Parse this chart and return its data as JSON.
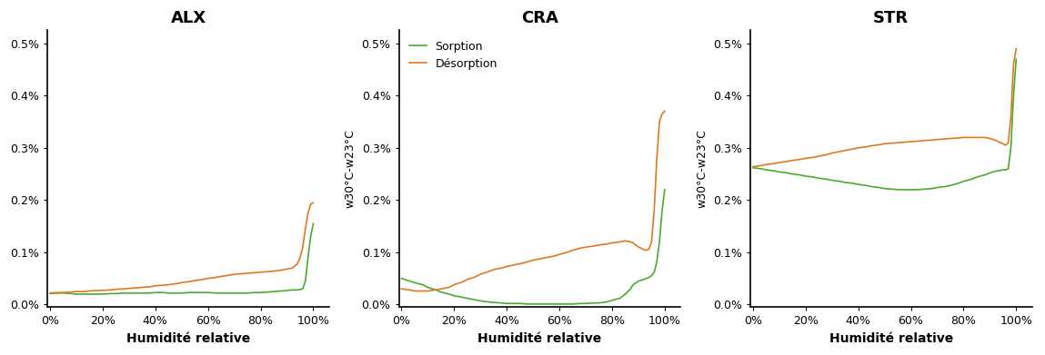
{
  "titles": [
    "ALX",
    "CRA",
    "STR"
  ],
  "ylabel": "w30°C-w23°C",
  "xlabel": "Humidité relative",
  "ylim": [
    0.0,
    0.005
  ],
  "yticks": [
    0.0,
    0.001,
    0.002,
    0.003,
    0.004,
    0.005
  ],
  "ytick_labels": [
    "0.0%",
    "0.1%",
    "0.2%",
    "0.3%",
    "0.4%",
    "0.5%"
  ],
  "xticks": [
    0,
    0.2,
    0.4,
    0.6,
    0.8,
    1.0
  ],
  "xtick_labels": [
    "0%",
    "20%",
    "40%",
    "60%",
    "80%",
    "100%"
  ],
  "color_sorption": "#4aaa30",
  "color_desorption": "#e07820",
  "legend_labels": [
    "Sorption",
    "Désorption"
  ],
  "legend_panel": 1,
  "show_ylabel": [
    false,
    true,
    true
  ],
  "ALX": {
    "sorption_x": [
      0.0,
      0.03,
      0.05,
      0.08,
      0.1,
      0.13,
      0.15,
      0.18,
      0.2,
      0.23,
      0.25,
      0.28,
      0.3,
      0.33,
      0.35,
      0.38,
      0.4,
      0.43,
      0.45,
      0.48,
      0.5,
      0.53,
      0.55,
      0.58,
      0.6,
      0.63,
      0.65,
      0.68,
      0.7,
      0.73,
      0.75,
      0.78,
      0.8,
      0.83,
      0.85,
      0.88,
      0.9,
      0.92,
      0.94,
      0.95,
      0.96,
      0.97,
      0.98,
      0.99,
      1.0
    ],
    "sorption_y": [
      0.00021,
      0.00022,
      0.00022,
      0.00021,
      0.0002,
      0.0002,
      0.0002,
      0.0002,
      0.0002,
      0.00021,
      0.00021,
      0.00022,
      0.00022,
      0.00022,
      0.00022,
      0.00022,
      0.00023,
      0.00023,
      0.00022,
      0.00022,
      0.00022,
      0.00023,
      0.00023,
      0.00023,
      0.00023,
      0.00022,
      0.00022,
      0.00022,
      0.00022,
      0.00022,
      0.00022,
      0.00023,
      0.00023,
      0.00024,
      0.00025,
      0.00026,
      0.00027,
      0.00028,
      0.00028,
      0.00029,
      0.0003,
      0.00045,
      0.0009,
      0.0013,
      0.00155
    ],
    "desorption_x": [
      0.0,
      0.03,
      0.05,
      0.08,
      0.1,
      0.13,
      0.15,
      0.18,
      0.2,
      0.23,
      0.25,
      0.28,
      0.3,
      0.33,
      0.35,
      0.38,
      0.4,
      0.43,
      0.45,
      0.48,
      0.5,
      0.53,
      0.55,
      0.58,
      0.6,
      0.63,
      0.65,
      0.68,
      0.7,
      0.73,
      0.75,
      0.78,
      0.8,
      0.83,
      0.85,
      0.88,
      0.9,
      0.92,
      0.94,
      0.95,
      0.96,
      0.97,
      0.98,
      0.99,
      1.0
    ],
    "desorption_y": [
      0.00022,
      0.00023,
      0.00023,
      0.00024,
      0.00025,
      0.00025,
      0.00026,
      0.00027,
      0.00027,
      0.00028,
      0.00029,
      0.0003,
      0.00031,
      0.00032,
      0.00033,
      0.00034,
      0.00036,
      0.00037,
      0.00038,
      0.0004,
      0.00042,
      0.00044,
      0.00046,
      0.00048,
      0.0005,
      0.00052,
      0.00054,
      0.00056,
      0.00058,
      0.00059,
      0.0006,
      0.00061,
      0.00062,
      0.00063,
      0.00064,
      0.00066,
      0.00068,
      0.0007,
      0.00078,
      0.0009,
      0.0011,
      0.00145,
      0.00175,
      0.00192,
      0.00195
    ]
  },
  "CRA": {
    "sorption_x": [
      0.0,
      0.03,
      0.05,
      0.08,
      0.1,
      0.13,
      0.15,
      0.18,
      0.2,
      0.23,
      0.25,
      0.28,
      0.3,
      0.33,
      0.35,
      0.38,
      0.4,
      0.43,
      0.45,
      0.48,
      0.5,
      0.53,
      0.55,
      0.58,
      0.6,
      0.63,
      0.65,
      0.68,
      0.7,
      0.73,
      0.75,
      0.78,
      0.8,
      0.83,
      0.85,
      0.87,
      0.88,
      0.9,
      0.92,
      0.93,
      0.94,
      0.95,
      0.96,
      0.97,
      0.98,
      0.99,
      1.0
    ],
    "sorption_y": [
      0.0005,
      0.00045,
      0.00042,
      0.00038,
      0.00033,
      0.00028,
      0.00024,
      0.0002,
      0.00017,
      0.00014,
      0.00012,
      9e-05,
      7e-05,
      5e-05,
      4e-05,
      3e-05,
      2e-05,
      2e-05,
      2e-05,
      1e-05,
      1e-05,
      1e-05,
      1e-05,
      1e-05,
      1e-05,
      1e-05,
      1e-05,
      2e-05,
      2e-05,
      3e-05,
      3e-05,
      5e-05,
      8e-05,
      0.00012,
      0.0002,
      0.0003,
      0.00038,
      0.00045,
      0.00048,
      0.0005,
      0.00052,
      0.00055,
      0.00062,
      0.00082,
      0.0012,
      0.0018,
      0.0022
    ],
    "desorption_x": [
      0.0,
      0.03,
      0.05,
      0.08,
      0.1,
      0.13,
      0.15,
      0.18,
      0.2,
      0.23,
      0.25,
      0.28,
      0.3,
      0.33,
      0.35,
      0.38,
      0.4,
      0.43,
      0.45,
      0.48,
      0.5,
      0.53,
      0.55,
      0.58,
      0.6,
      0.63,
      0.65,
      0.68,
      0.7,
      0.73,
      0.75,
      0.78,
      0.8,
      0.83,
      0.85,
      0.87,
      0.88,
      0.9,
      0.91,
      0.92,
      0.93,
      0.94,
      0.95,
      0.96,
      0.97,
      0.98,
      0.99,
      1.0
    ],
    "desorption_y": [
      0.0003,
      0.00028,
      0.00026,
      0.00026,
      0.00026,
      0.00028,
      0.0003,
      0.00033,
      0.00038,
      0.00043,
      0.00048,
      0.00053,
      0.00058,
      0.00063,
      0.00067,
      0.0007,
      0.00073,
      0.00076,
      0.00078,
      0.00082,
      0.00085,
      0.00088,
      0.0009,
      0.00093,
      0.00096,
      0.001,
      0.00104,
      0.00108,
      0.0011,
      0.00112,
      0.00114,
      0.00116,
      0.00118,
      0.0012,
      0.00122,
      0.0012,
      0.00118,
      0.0011,
      0.00108,
      0.00105,
      0.00104,
      0.00106,
      0.0012,
      0.0018,
      0.0028,
      0.0035,
      0.00365,
      0.0037
    ]
  },
  "STR": {
    "sorption_x": [
      0.0,
      0.03,
      0.05,
      0.08,
      0.1,
      0.13,
      0.15,
      0.18,
      0.2,
      0.23,
      0.25,
      0.28,
      0.3,
      0.33,
      0.35,
      0.38,
      0.4,
      0.43,
      0.45,
      0.48,
      0.5,
      0.53,
      0.55,
      0.58,
      0.6,
      0.63,
      0.65,
      0.68,
      0.7,
      0.73,
      0.75,
      0.78,
      0.8,
      0.83,
      0.85,
      0.88,
      0.9,
      0.92,
      0.94,
      0.95,
      0.96,
      0.97,
      0.98,
      0.99,
      1.0
    ],
    "sorption_y": [
      0.00262,
      0.0026,
      0.00258,
      0.00256,
      0.00254,
      0.00252,
      0.0025,
      0.00248,
      0.00246,
      0.00244,
      0.00242,
      0.0024,
      0.00238,
      0.00236,
      0.00234,
      0.00232,
      0.0023,
      0.00228,
      0.00226,
      0.00224,
      0.00222,
      0.00221,
      0.0022,
      0.0022,
      0.0022,
      0.0022,
      0.00221,
      0.00222,
      0.00224,
      0.00226,
      0.00228,
      0.00232,
      0.00236,
      0.0024,
      0.00244,
      0.00248,
      0.00252,
      0.00255,
      0.00257,
      0.00258,
      0.00258,
      0.0026,
      0.003,
      0.004,
      0.0047
    ],
    "desorption_x": [
      0.0,
      0.03,
      0.05,
      0.08,
      0.1,
      0.13,
      0.15,
      0.18,
      0.2,
      0.23,
      0.25,
      0.28,
      0.3,
      0.33,
      0.35,
      0.38,
      0.4,
      0.43,
      0.45,
      0.48,
      0.5,
      0.53,
      0.55,
      0.58,
      0.6,
      0.63,
      0.65,
      0.68,
      0.7,
      0.73,
      0.75,
      0.78,
      0.8,
      0.83,
      0.85,
      0.88,
      0.9,
      0.92,
      0.94,
      0.95,
      0.96,
      0.97,
      0.98,
      0.99,
      1.0
    ],
    "desorption_y": [
      0.00264,
      0.00266,
      0.00268,
      0.0027,
      0.00272,
      0.00274,
      0.00276,
      0.00278,
      0.0028,
      0.00282,
      0.00284,
      0.00287,
      0.0029,
      0.00293,
      0.00295,
      0.00298,
      0.003,
      0.00302,
      0.00304,
      0.00306,
      0.00308,
      0.00309,
      0.0031,
      0.00311,
      0.00312,
      0.00313,
      0.00314,
      0.00315,
      0.00316,
      0.00317,
      0.00318,
      0.00319,
      0.0032,
      0.0032,
      0.0032,
      0.0032,
      0.00318,
      0.00315,
      0.0031,
      0.00308,
      0.00305,
      0.0031,
      0.0036,
      0.0046,
      0.0049
    ]
  }
}
